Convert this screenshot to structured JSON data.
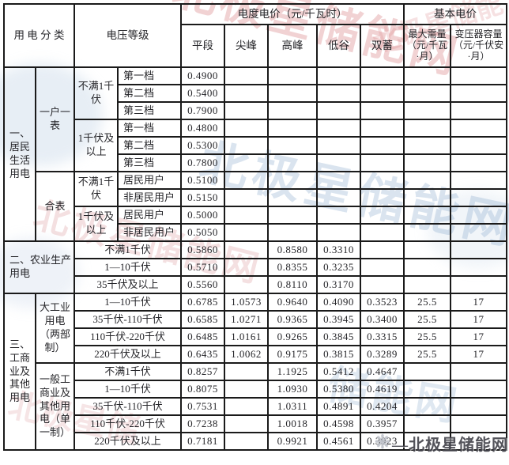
{
  "header": {
    "user_category": "用 电 分 类",
    "voltage_level": "电压等级",
    "energy_price_group": "电度电价（元/千瓦时）",
    "basic_price_group": "基本电价",
    "cols": [
      "平段",
      "尖峰",
      "高峰",
      "低谷",
      "双蓄",
      "最大需量（元/千瓦·月）",
      "变压器容量（元/千伏安·月）"
    ]
  },
  "table": {
    "rows": [
      {
        "cells": [
          {
            "t": "一、居民生活用电",
            "rs": 10,
            "cls": "cat"
          },
          {
            "t": "一户一表",
            "rs": 6,
            "cls": "cat"
          },
          {
            "t": "不满1千伏",
            "rs": 3,
            "cls": "cat"
          },
          {
            "t": "第一档",
            "cls": "label"
          },
          {
            "t": "0.4900",
            "cls": "num"
          },
          {},
          {},
          {},
          {},
          {},
          {}
        ]
      },
      {
        "cells": [
          {
            "t": "第二档",
            "cls": "label"
          },
          {
            "t": "0.5400",
            "cls": "num"
          },
          {},
          {},
          {},
          {},
          {},
          {}
        ]
      },
      {
        "cells": [
          {
            "t": "第三档",
            "cls": "label"
          },
          {
            "t": "0.7900",
            "cls": "num"
          },
          {},
          {},
          {},
          {},
          {},
          {}
        ]
      },
      {
        "cells": [
          {
            "t": "1千伏及以上",
            "rs": 3,
            "cls": "cat"
          },
          {
            "t": "第一档",
            "cls": "label"
          },
          {
            "t": "0.4800",
            "cls": "num"
          },
          {},
          {},
          {},
          {},
          {},
          {}
        ]
      },
      {
        "cells": [
          {
            "t": "第二档",
            "cls": "label"
          },
          {
            "t": "0.5300",
            "cls": "num"
          },
          {},
          {},
          {},
          {},
          {},
          {}
        ]
      },
      {
        "cells": [
          {
            "t": "第三档",
            "cls": "label"
          },
          {
            "t": "0.7800",
            "cls": "num"
          },
          {},
          {},
          {},
          {},
          {},
          {}
        ]
      },
      {
        "cells": [
          {
            "t": "合表",
            "rs": 4,
            "cls": "cat"
          },
          {
            "t": "不满1千伏",
            "rs": 2,
            "cls": "cat"
          },
          {
            "t": "居民用户",
            "cls": "label"
          },
          {
            "t": "0.5100",
            "cls": "num"
          },
          {},
          {},
          {},
          {},
          {},
          {}
        ]
      },
      {
        "cells": [
          {
            "t": "非居民用户",
            "cls": "label"
          },
          {
            "t": "0.5150",
            "cls": "num"
          },
          {},
          {},
          {},
          {},
          {},
          {}
        ]
      },
      {
        "cells": [
          {
            "t": "1千伏及以上",
            "rs": 2,
            "cls": "cat"
          },
          {
            "t": "居民用户",
            "cls": "label"
          },
          {
            "t": "0.5000",
            "cls": "num"
          },
          {},
          {},
          {},
          {},
          {},
          {}
        ]
      },
      {
        "cells": [
          {
            "t": "非居民用户",
            "cls": "label"
          },
          {
            "t": "0.5050",
            "cls": "num"
          },
          {},
          {},
          {},
          {},
          {},
          {}
        ]
      },
      {
        "cells": [
          {
            "t": "二、农业生产用电",
            "rs": 3,
            "cs": 2,
            "cls": "cat label"
          },
          {
            "t": "不满1千伏",
            "cs": 2
          },
          {
            "t": "0.5860",
            "cls": "num"
          },
          {},
          {
            "t": "0.8580",
            "cls": "num"
          },
          {
            "t": "0.3310",
            "cls": "num"
          },
          {},
          {},
          {}
        ]
      },
      {
        "cells": [
          {
            "t": "1—10千伏",
            "cs": 2
          },
          {
            "t": "0.5710",
            "cls": "num"
          },
          {},
          {
            "t": "0.8355",
            "cls": "num"
          },
          {
            "t": "0.3235",
            "cls": "num"
          },
          {},
          {},
          {}
        ]
      },
      {
        "cells": [
          {
            "t": "35千伏及以上",
            "cs": 2
          },
          {
            "t": "0.5560",
            "cls": "num"
          },
          {},
          {
            "t": "0.8110",
            "cls": "num"
          },
          {
            "t": "0.3170",
            "cls": "num"
          },
          {},
          {},
          {}
        ]
      },
      {
        "cells": [
          {
            "t": "三、工商业及其他用电",
            "rs": 9,
            "cls": "cat"
          },
          {
            "t": "大工业用电（两部制）",
            "rs": 4,
            "cls": "cat"
          },
          {
            "t": "1—10千伏",
            "cs": 2
          },
          {
            "t": "0.6785",
            "cls": "num"
          },
          {
            "t": "1.0573",
            "cls": "num"
          },
          {
            "t": "0.9640",
            "cls": "num"
          },
          {
            "t": "0.4090",
            "cls": "num"
          },
          {
            "t": "0.3523",
            "cls": "num"
          },
          {
            "t": "25.5",
            "cls": "num"
          },
          {
            "t": "17",
            "cls": "num"
          }
        ]
      },
      {
        "cells": [
          {
            "t": "35千伏-110千伏",
            "cs": 2
          },
          {
            "t": "0.6585",
            "cls": "num"
          },
          {
            "t": "1.0271",
            "cls": "num"
          },
          {
            "t": "0.9365",
            "cls": "num"
          },
          {
            "t": "0.3945",
            "cls": "num"
          },
          {
            "t": "0.3400",
            "cls": "num"
          },
          {
            "t": "25.5",
            "cls": "num"
          },
          {
            "t": "17",
            "cls": "num"
          }
        ]
      },
      {
        "cells": [
          {
            "t": "110千伏-220千伏",
            "cs": 2
          },
          {
            "t": "0.6485",
            "cls": "num"
          },
          {
            "t": "1.0161",
            "cls": "num"
          },
          {
            "t": "0.9265",
            "cls": "num"
          },
          {
            "t": "0.3845",
            "cls": "num"
          },
          {
            "t": "0.3315",
            "cls": "num"
          },
          {
            "t": "25.5",
            "cls": "num"
          },
          {
            "t": "17",
            "cls": "num"
          }
        ]
      },
      {
        "cells": [
          {
            "t": "220千伏及以上",
            "cs": 2
          },
          {
            "t": "0.6435",
            "cls": "num"
          },
          {
            "t": "1.0062",
            "cls": "num"
          },
          {
            "t": "0.9175",
            "cls": "num"
          },
          {
            "t": "0.3815",
            "cls": "num"
          },
          {
            "t": "0.3289",
            "cls": "num"
          },
          {
            "t": "25.5",
            "cls": "num"
          },
          {
            "t": "17",
            "cls": "num"
          }
        ]
      },
      {
        "cells": [
          {
            "t": "一般工商业及其他用电（单一制）",
            "rs": 5,
            "cls": "cat"
          },
          {
            "t": "不满1千伏",
            "cs": 2
          },
          {
            "t": "0.8257",
            "cls": "num"
          },
          {},
          {
            "t": "1.1925",
            "cls": "num"
          },
          {
            "t": "0.5412",
            "cls": "num"
          },
          {
            "t": "0.4647",
            "cls": "num"
          },
          {},
          {}
        ]
      },
      {
        "cells": [
          {
            "t": "1—10千伏",
            "cs": 2
          },
          {
            "t": "0.8075",
            "cls": "num"
          },
          {},
          {
            "t": "1.0930",
            "cls": "num"
          },
          {
            "t": "0.5380",
            "cls": "num"
          },
          {
            "t": "0.4619",
            "cls": "num"
          },
          {},
          {}
        ]
      },
      {
        "cells": [
          {
            "t": "35千伏-110千伏",
            "cs": 2
          },
          {
            "t": "0.7531",
            "cls": "num"
          },
          {},
          {
            "t": "1.0311",
            "cls": "num"
          },
          {
            "t": "0.4891",
            "cls": "num"
          },
          {
            "t": "0.4204",
            "cls": "num"
          },
          {},
          {}
        ]
      },
      {
        "cells": [
          {
            "t": "110千伏-220千伏",
            "cs": 2
          },
          {
            "t": "0.7238",
            "cls": "num"
          },
          {},
          {
            "t": "1.0018",
            "cls": "num"
          },
          {
            "t": "0.4598",
            "cls": "num"
          },
          {
            "t": "0.3957",
            "cls": "num"
          },
          {},
          {}
        ]
      },
      {
        "cells": [
          {
            "t": "220千伏及以上",
            "cs": 2
          },
          {
            "t": "0.7181",
            "cls": "num"
          },
          {},
          {
            "t": "0.9921",
            "cls": "num"
          },
          {
            "t": "0.4561",
            "cls": "num"
          },
          {
            "t": "0.3923",
            "cls": "num"
          },
          {},
          {}
        ]
      }
    ]
  },
  "watermarks": {
    "items": [
      {
        "text": "北极星储能网"
      },
      {
        "text": "储能网"
      },
      {
        "text": "北极星储能网"
      },
      {
        "text": "北极星储能"
      },
      {
        "text": "北极星储能网"
      },
      {
        "text": "北极星储"
      }
    ]
  },
  "brand": {
    "icon": "starburst-icon",
    "icon_glyph": "❋",
    "text": "—北极星储能网"
  },
  "colors": {
    "border": "#1a1a1a",
    "text": "#26262a",
    "watermark_pink": "#d0787d",
    "watermark_blue": "#8fadcd",
    "logo_gray": "#45454d"
  }
}
